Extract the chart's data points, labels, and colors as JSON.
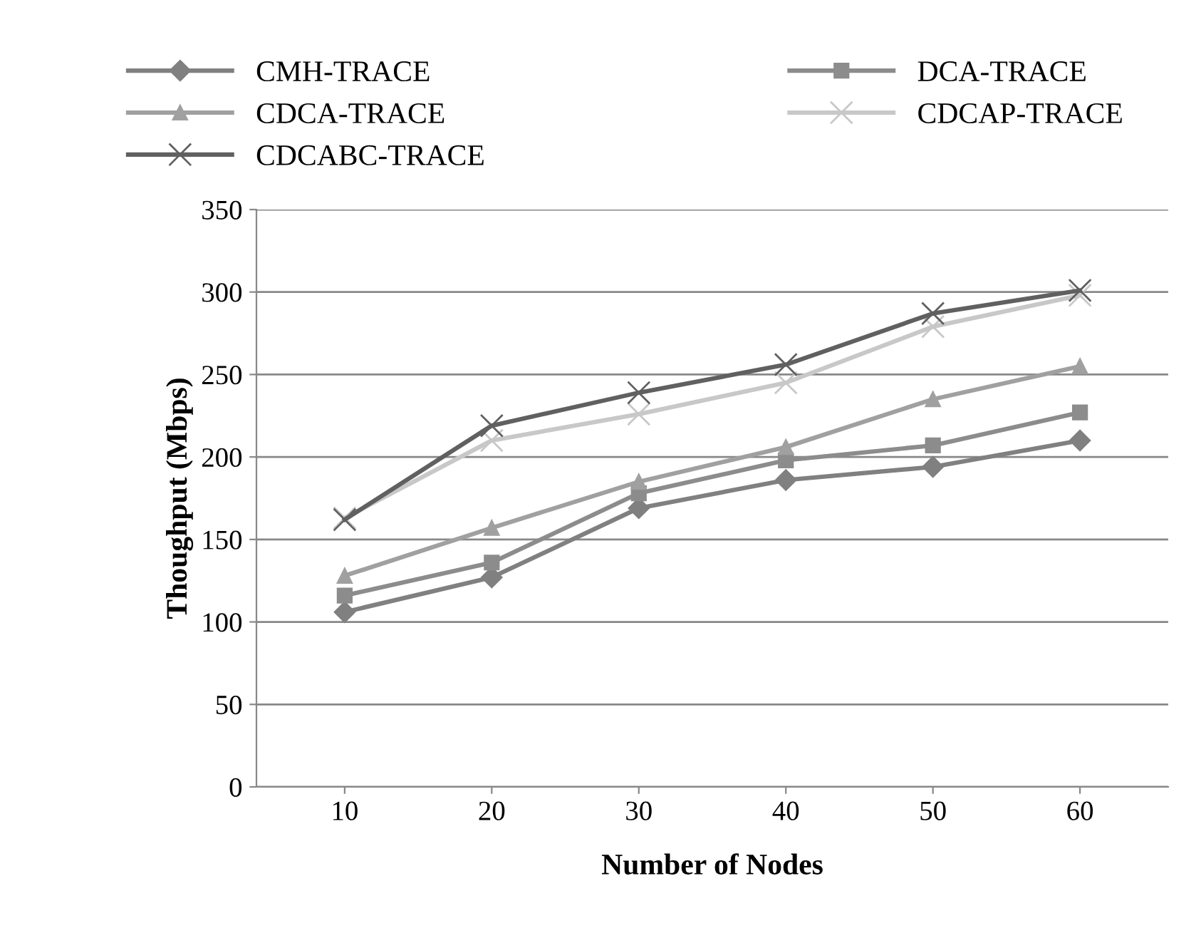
{
  "chart_data": {
    "type": "line",
    "xlabel": "Number of Nodes",
    "ylabel": "Thoughput (Mbps)",
    "categories": [
      "10",
      "20",
      "30",
      "40",
      "50",
      "60"
    ],
    "series": [
      {
        "name": "CMH-TRACE",
        "color": "#808080",
        "marker": "diamond",
        "values": [
          106,
          127,
          169,
          186,
          194,
          210
        ]
      },
      {
        "name": "DCA-TRACE",
        "color": "#8c8c8c",
        "marker": "square",
        "values": [
          116,
          136,
          178,
          198,
          207,
          227
        ]
      },
      {
        "name": "CDCA-TRACE",
        "color": "#a0a0a0",
        "marker": "triangle",
        "values": [
          128,
          157,
          185,
          206,
          235,
          255
        ]
      },
      {
        "name": "CDCAP-TRACE",
        "color": "#c8c8c8",
        "marker": "cross",
        "values": [
          163,
          210,
          226,
          245,
          279,
          298
        ]
      },
      {
        "name": "CDCABC-TRACE",
        "color": "#606060",
        "marker": "cross",
        "values": [
          162,
          219,
          239,
          256,
          287,
          301
        ]
      }
    ],
    "ylim": [
      0,
      350
    ],
    "yticks": [
      0,
      50,
      100,
      150,
      200,
      250,
      300,
      350
    ],
    "grid": "y",
    "legend": "top"
  }
}
